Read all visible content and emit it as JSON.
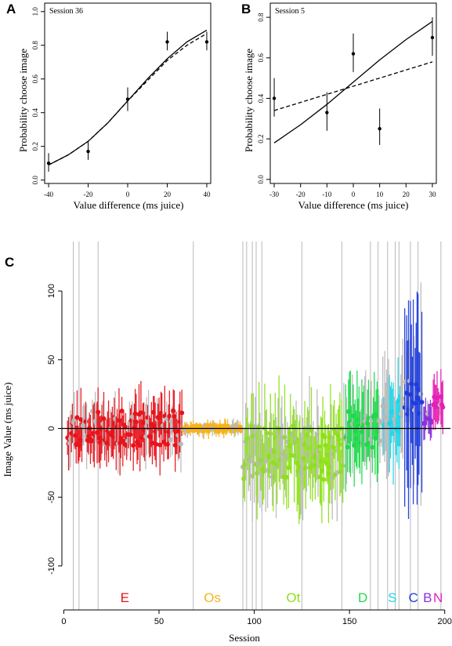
{
  "panels": {
    "A": {
      "letter": "A",
      "session_label": "Session 36",
      "xlabel": "Value difference (ms juice)",
      "ylabel": "Probability choose image",
      "xticks": [
        -40,
        -20,
        0,
        20,
        40
      ],
      "xtick_labels": [
        "-40",
        "-20",
        "0",
        "20",
        "40"
      ],
      "yticks": [
        0,
        0.2,
        0.4,
        0.6,
        0.8,
        1.0
      ],
      "ytick_labels": [
        "0.0",
        "0.2",
        "0.4",
        "0.6",
        "0.8",
        "1.0"
      ]
    },
    "B": {
      "letter": "B",
      "session_label": "Session 5",
      "xlabel": "Value difference (ms juice)",
      "ylabel": "Probability choose image",
      "xticks": [
        -30,
        -20,
        -10,
        0,
        10,
        20,
        30
      ],
      "xtick_labels": [
        "-30",
        "-20",
        "-10",
        "0",
        "10",
        "20",
        "30"
      ],
      "yticks": [
        0,
        0.2,
        0.4,
        0.6,
        0.8
      ],
      "ytick_labels": [
        "0.0",
        "0.2",
        "0.4",
        "0.6",
        "0.8"
      ]
    },
    "C": {
      "letter": "C",
      "xlabel": "Session",
      "ylabel": "Image Value (ms juice)",
      "xticks": [
        0,
        50,
        100,
        150,
        200
      ],
      "xtick_labels": [
        "0",
        "50",
        "100",
        "150",
        "200"
      ],
      "yticks": [
        -100,
        -50,
        0,
        50,
        100
      ],
      "ytick_labels": [
        "-100",
        "-50",
        "0",
        "50",
        "100"
      ]
    }
  },
  "chart_data": [
    {
      "type": "scatter",
      "title": "Session 36",
      "xlabel": "Value difference (ms juice)",
      "ylabel": "Probability choose image",
      "xlim": [
        -42,
        42
      ],
      "ylim": [
        -0.02,
        1.05
      ],
      "points": [
        {
          "x": -40,
          "y": 0.1,
          "lo": 0.05,
          "hi": 0.16
        },
        {
          "x": -20,
          "y": 0.17,
          "lo": 0.12,
          "hi": 0.23
        },
        {
          "x": 0,
          "y": 0.48,
          "lo": 0.41,
          "hi": 0.55
        },
        {
          "x": 20,
          "y": 0.82,
          "lo": 0.77,
          "hi": 0.88
        },
        {
          "x": 40,
          "y": 0.82,
          "lo": 0.77,
          "hi": 0.88
        }
      ],
      "curves": [
        {
          "style": "solid",
          "x": [
            -40,
            -30,
            -20,
            -10,
            0,
            10,
            20,
            30,
            40
          ],
          "y": [
            0.09,
            0.15,
            0.23,
            0.34,
            0.47,
            0.6,
            0.72,
            0.82,
            0.89
          ]
        },
        {
          "style": "dashed",
          "x": [
            -40,
            -30,
            -20,
            -10,
            0,
            10,
            20,
            30,
            40
          ],
          "y": [
            0.09,
            0.15,
            0.23,
            0.34,
            0.47,
            0.59,
            0.71,
            0.8,
            0.87
          ]
        }
      ]
    },
    {
      "type": "scatter",
      "title": "Session 5",
      "xlabel": "Value difference (ms juice)",
      "ylabel": "Probability choose image",
      "xlim": [
        -31.5,
        31.5
      ],
      "ylim": [
        -0.02,
        0.87
      ],
      "points": [
        {
          "x": -30,
          "y": 0.4,
          "lo": 0.31,
          "hi": 0.5
        },
        {
          "x": -10,
          "y": 0.33,
          "lo": 0.24,
          "hi": 0.43
        },
        {
          "x": 0,
          "y": 0.62,
          "lo": 0.53,
          "hi": 0.72
        },
        {
          "x": 10,
          "y": 0.25,
          "lo": 0.17,
          "hi": 0.35
        },
        {
          "x": 30,
          "y": 0.7,
          "lo": 0.61,
          "hi": 0.8
        }
      ],
      "curves": [
        {
          "style": "solid",
          "x": [
            -30,
            -20,
            -10,
            0,
            10,
            20,
            30
          ],
          "y": [
            0.18,
            0.27,
            0.37,
            0.48,
            0.59,
            0.69,
            0.78
          ]
        },
        {
          "style": "dashed",
          "x": [
            -30,
            30
          ],
          "y": [
            0.34,
            0.58
          ]
        }
      ]
    },
    {
      "type": "scatter",
      "xlabel": "Session",
      "ylabel": "Image Value (ms juice)",
      "xlim": [
        -1,
        203
      ],
      "ylim": [
        -132,
        136
      ],
      "hline": 0,
      "groups": [
        {
          "label": "E",
          "color": "#e8131b",
          "range": [
            2,
            62
          ],
          "seed": 11,
          "spread": 13,
          "bias": 0,
          "err": 16
        },
        {
          "label": "Os",
          "color": "#f5b41e",
          "range": [
            63,
            93
          ],
          "seed": 23,
          "spread": 2.2,
          "bias": 0,
          "err": 4
        },
        {
          "label": "Ot",
          "color": "#8ee01a",
          "range": [
            94,
            147
          ],
          "seed": 37,
          "spread": 20,
          "bias": -18,
          "err": 26
        },
        {
          "label": "D",
          "color": "#1fd94b",
          "range": [
            148,
            166
          ],
          "seed": 41,
          "spread": 14,
          "bias": 0,
          "err": 26
        },
        {
          "label": "S",
          "color": "#1ed6e8",
          "range": [
            167,
            178
          ],
          "seed": 53,
          "spread": 16,
          "bias": 12,
          "err": 30
        },
        {
          "label": "C",
          "color": "#1e3cde",
          "range": [
            179,
            188
          ],
          "seed": 61,
          "spread": 14,
          "bias": 22,
          "err": 55
        },
        {
          "label": "B",
          "color": "#8d2fdc",
          "range": [
            189,
            193
          ],
          "seed": 71,
          "spread": 5,
          "bias": 6,
          "err": 10
        },
        {
          "label": "N",
          "color": "#e61fb4",
          "range": [
            194,
            199
          ],
          "seed": 83,
          "spread": 6,
          "bias": 20,
          "err": 14
        }
      ],
      "gray_color": "#b9b9b9",
      "gray_lines_x": [
        5,
        8,
        18,
        68,
        94,
        96,
        99,
        101,
        104,
        125,
        146,
        161,
        165,
        170,
        174,
        176,
        182,
        186,
        198
      ]
    }
  ]
}
